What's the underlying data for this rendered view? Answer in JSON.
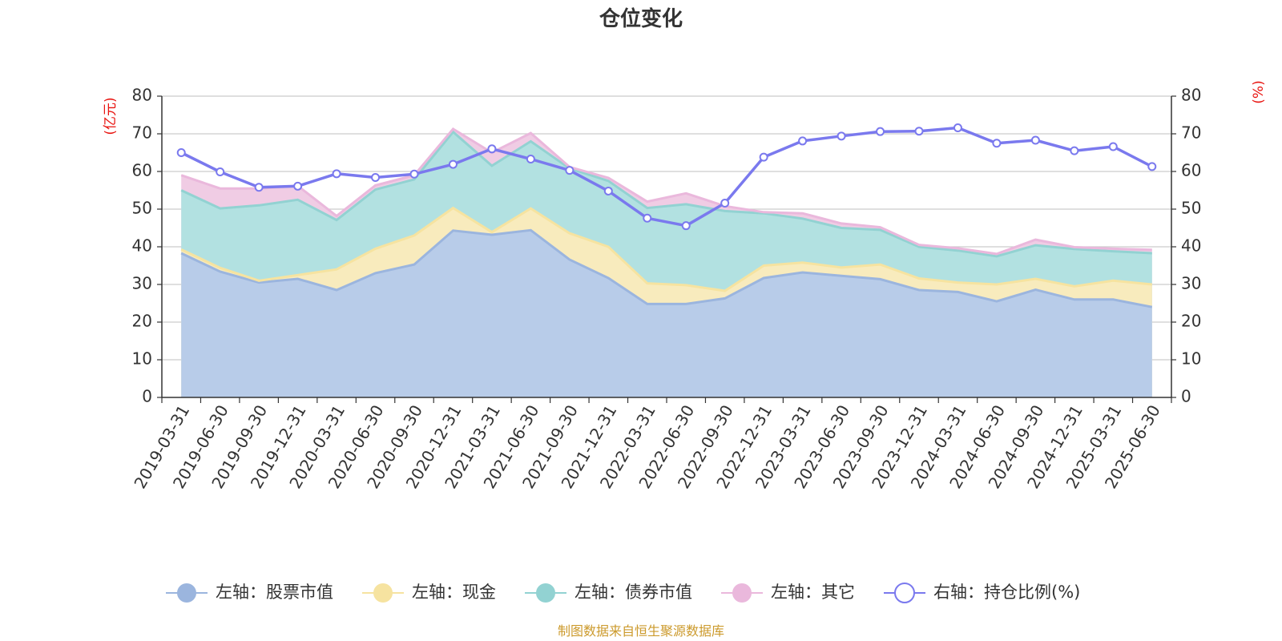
{
  "chart_data": {
    "type": "area",
    "title": "仓位变化",
    "left_axis_unit": "(亿元)",
    "right_axis_unit": "(%)",
    "source_note": "制图数据来自恒生聚源数据库",
    "stacked": true,
    "ylim_left": [
      0,
      80
    ],
    "ylim_right": [
      0,
      80
    ],
    "y_ticks": [
      0,
      10,
      20,
      30,
      40,
      50,
      60,
      70,
      80
    ],
    "grid": true,
    "legend_position": "bottom",
    "categories": [
      "2019-03-31",
      "2019-06-30",
      "2019-09-30",
      "2019-12-31",
      "2020-03-31",
      "2020-06-30",
      "2020-09-30",
      "2020-12-31",
      "2021-03-31",
      "2021-06-30",
      "2021-09-30",
      "2021-12-31",
      "2022-03-31",
      "2022-06-30",
      "2022-09-30",
      "2022-12-31",
      "2023-03-31",
      "2023-06-30",
      "2023-09-30",
      "2023-12-31",
      "2024-03-31",
      "2024-06-30",
      "2024-09-30",
      "2024-12-31",
      "2025-03-31",
      "2025-06-30"
    ],
    "series": [
      {
        "name": "左轴：股票市值",
        "axis": "left",
        "color": "#9bb5de",
        "fill": "#b8cce9",
        "values": [
          38.3,
          33.4,
          30.5,
          31.5,
          28.5,
          33.0,
          35.3,
          44.3,
          43.2,
          44.4,
          36.6,
          31.7,
          24.8,
          24.8,
          26.3,
          31.7,
          33.2,
          32.3,
          31.4,
          28.5,
          28.0,
          25.5,
          28.6,
          26.0,
          26.0,
          24.0
        ]
      },
      {
        "name": "左轴：现金",
        "axis": "left",
        "color": "#f6e3a0",
        "fill": "#f8ebbd",
        "values": [
          1.0,
          1.0,
          0.5,
          1.0,
          5.5,
          6.5,
          7.7,
          6.0,
          0.7,
          5.8,
          7.0,
          8.3,
          5.5,
          5.0,
          2.0,
          3.3,
          2.6,
          2.2,
          3.9,
          3.1,
          2.5,
          4.5,
          2.9,
          3.5,
          5.0,
          6.0
        ]
      },
      {
        "name": "左轴：债券市值",
        "axis": "left",
        "color": "#92d2d2",
        "fill": "#b2e1e1",
        "values": [
          15.7,
          15.8,
          20.0,
          20.0,
          13.1,
          15.7,
          14.9,
          20.2,
          17.6,
          17.8,
          17.2,
          17.5,
          20.0,
          21.5,
          21.2,
          13.9,
          11.7,
          10.5,
          9.2,
          8.4,
          8.5,
          7.5,
          8.9,
          9.9,
          7.8,
          8.3
        ]
      },
      {
        "name": "左轴：其它",
        "axis": "left",
        "color": "#eab8dc",
        "fill": "#f0cce4",
        "values": [
          4.0,
          5.3,
          4.5,
          3.7,
          1.1,
          1.1,
          1.1,
          0.8,
          3.5,
          2.2,
          0.4,
          0.8,
          1.7,
          2.9,
          1.3,
          0.3,
          1.4,
          1.2,
          0.7,
          0.5,
          0.6,
          0.6,
          1.5,
          0.5,
          0.7,
          0.9
        ]
      },
      {
        "name": "右轴：持仓比例(%)",
        "axis": "right",
        "type": "line",
        "color": "#7a79ee",
        "values": [
          65.0,
          59.9,
          55.8,
          56.1,
          59.4,
          58.4,
          59.3,
          61.9,
          66.0,
          63.3,
          60.3,
          54.8,
          47.6,
          45.6,
          51.6,
          63.8,
          68.1,
          69.4,
          70.6,
          70.7,
          71.6,
          67.5,
          68.3,
          65.5,
          66.6,
          61.3
        ]
      }
    ]
  }
}
